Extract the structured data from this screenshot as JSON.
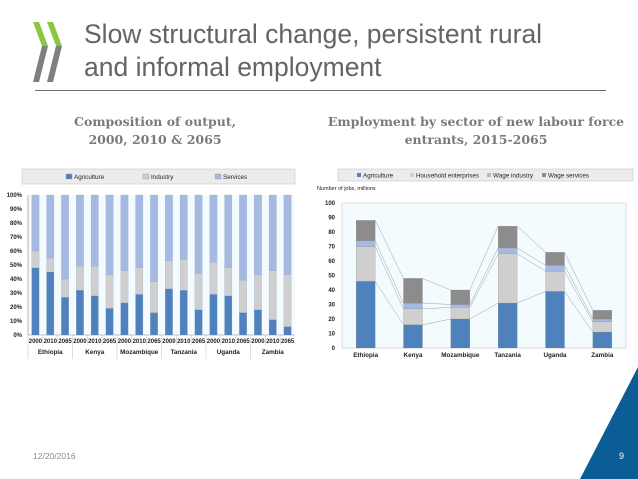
{
  "slide": {
    "title_line1": "Slow structural change, persistent rural",
    "title_line2": "and informal employment",
    "date": "12/20/2016",
    "page_number": "9",
    "colors": {
      "logo_green": "#8cc63f",
      "logo_grey": "#7f7f7f",
      "corner_blue": "#0b5d96",
      "title_grey": "#646464"
    }
  },
  "left_chart": {
    "title_line1": "Composition of output,",
    "title_line2": "2000, 2010 & 2065"
  },
  "right_chart": {
    "title_line1": "Employment by sector of new labour force",
    "title_line2": "entrants, 2015-2065"
  },
  "chart_data": [
    {
      "type": "bar",
      "stacked": true,
      "title": "Composition of output, 2000, 2010 & 2065",
      "xlabel": "",
      "ylabel": "",
      "ylim": [
        0,
        100
      ],
      "y_ticks": [
        "0%",
        "10%",
        "20%",
        "30%",
        "40%",
        "50%",
        "60%",
        "70%",
        "80%",
        "90%",
        "100%"
      ],
      "legend": [
        "Agriculture",
        "Industry",
        "Services"
      ],
      "legend_position": "top",
      "groups": [
        "Ethiopia",
        "Kenya",
        "Mozambique",
        "Tanzania",
        "Uganda",
        "Zambia"
      ],
      "categories": [
        "2000",
        "2010",
        "2065",
        "2000",
        "2010",
        "2065",
        "2000",
        "2010",
        "2065",
        "2000",
        "2010",
        "2065",
        "2000",
        "2010",
        "2065",
        "2000",
        "2010",
        "2065"
      ],
      "series": [
        {
          "name": "Agriculture",
          "color": "#4f81bd",
          "values": [
            48,
            45,
            27,
            32,
            28,
            19,
            23,
            29,
            16,
            33,
            32,
            18,
            29,
            28,
            16,
            18,
            11,
            6
          ]
        },
        {
          "name": "Industry",
          "color": "#cfcfcf",
          "values": [
            12,
            10,
            13,
            17,
            21,
            24,
            23,
            19,
            22,
            20,
            22,
            26,
            23,
            20,
            23,
            25,
            35,
            37
          ]
        },
        {
          "name": "Services",
          "color": "#a6b9e0",
          "values": [
            40,
            45,
            60,
            51,
            51,
            57,
            54,
            52,
            62,
            47,
            46,
            56,
            48,
            52,
            61,
            57,
            54,
            57
          ]
        }
      ]
    },
    {
      "type": "bar",
      "stacked": true,
      "title": "Employment by sector of new labour force entrants, 2015-2065",
      "xlabel": "",
      "ylabel": "Number of jobs, millions",
      "ylim": [
        0,
        100
      ],
      "y_ticks": [
        "0",
        "10",
        "20",
        "30",
        "40",
        "50",
        "60",
        "70",
        "80",
        "90",
        "100"
      ],
      "legend": [
        "Agriculture",
        "Household enterprises",
        "Wage industry",
        "Wage services"
      ],
      "legend_position": "top",
      "categories": [
        "Ethiopia",
        "Kenya",
        "Mozambique",
        "Tanzania",
        "Uganda",
        "Zambia"
      ],
      "series": [
        {
          "name": "Agriculture",
          "color": "#4f81bd",
          "values": [
            46,
            16,
            20,
            31,
            39,
            11
          ]
        },
        {
          "name": "Household enterprises",
          "color": "#cfcfcf",
          "values": [
            24,
            11,
            8,
            34,
            14,
            7
          ]
        },
        {
          "name": "Wage industry",
          "color": "#a6b9e0",
          "values": [
            4,
            4,
            2,
            4,
            4,
            2
          ]
        },
        {
          "name": "Wage services",
          "color": "#8c8c8c",
          "values": [
            14,
            17,
            10,
            15,
            9,
            6
          ]
        }
      ],
      "series_lines": true
    }
  ]
}
